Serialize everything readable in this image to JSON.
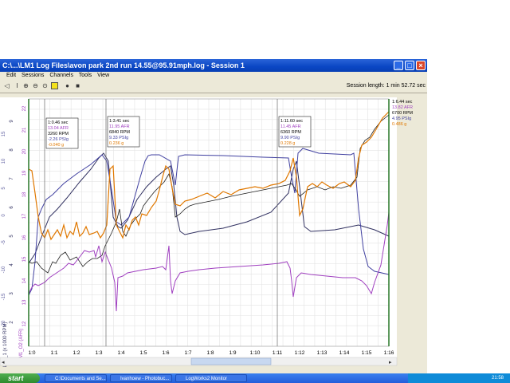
{
  "window": {
    "title": "C:\\...\\LM1 Log Files\\avon park 2nd run 14.55@95.91mph.log - Session 1",
    "min_label": "_",
    "max_label": "□",
    "close_label": "×"
  },
  "menu": [
    "Edit",
    "Sessions",
    "Channels",
    "Tools",
    "View"
  ],
  "toolbar": {
    "session_length": "Session length:  1 min 52.72 sec"
  },
  "axis": {
    "x_ticks": [
      "1:0",
      "1:1",
      "1:2",
      "1:3",
      "1:4",
      "1:5",
      "1:6",
      "1:7",
      "1:8",
      "1:9",
      "1:10",
      "1:11",
      "1:12",
      "1:13",
      "1:14",
      "1:15",
      "1:16"
    ],
    "left_outer_ticks": [
      "-20",
      "-15",
      "-10",
      "-5",
      "0",
      "5",
      "10",
      "15"
    ],
    "left_inner_ticks": [
      "2",
      "3",
      "4",
      "5",
      "6",
      "7",
      "8",
      "9"
    ],
    "rpm_ticks": [
      "12",
      "13",
      "14",
      "15",
      "16",
      "17",
      "18",
      "19",
      "20",
      "21",
      "22"
    ],
    "left_label": "LM1_1 (x 1000 RPM)",
    "right_label": "LM1_O2 (AFR)"
  },
  "readouts": [
    {
      "time": "1:0.46 sec",
      "afr": "13.04 AFR",
      "rpm": "3260 RPM",
      "psi": "-2.26 PSIg",
      "g": "-0.040 g"
    },
    {
      "time": "1:3.41 sec",
      "afr": "11.95 AFR",
      "rpm": "6840 RPM",
      "psi": "9.33 PSIg",
      "g": "0.236 g"
    },
    {
      "time": "1:11.60 sec",
      "afr": "11.45 AFR",
      "rpm": "6360 RPM",
      "psi": "9.90 PSIg",
      "g": "0.228 g"
    },
    {
      "time": "1:6.44 sec",
      "afr": "13.82 AFR",
      "rpm": "6700 RPM",
      "psi": "4.95 PSIg",
      "g": "0.486 g"
    }
  ],
  "colors": {
    "afr": "#a040c0",
    "rpm": "#303060",
    "psi": "#4040a0",
    "g": "#e07800",
    "cursor": "#1a6e1a",
    "grid": "#e3e3e3",
    "titlebar": "#0a46c4"
  },
  "taskbar": {
    "start": "start",
    "tasks": [
      "C:\\Documents and Se...",
      "Ivanhoew - Photobuc...",
      "LogWorks2 Monitor"
    ],
    "clock": "21:58"
  }
}
